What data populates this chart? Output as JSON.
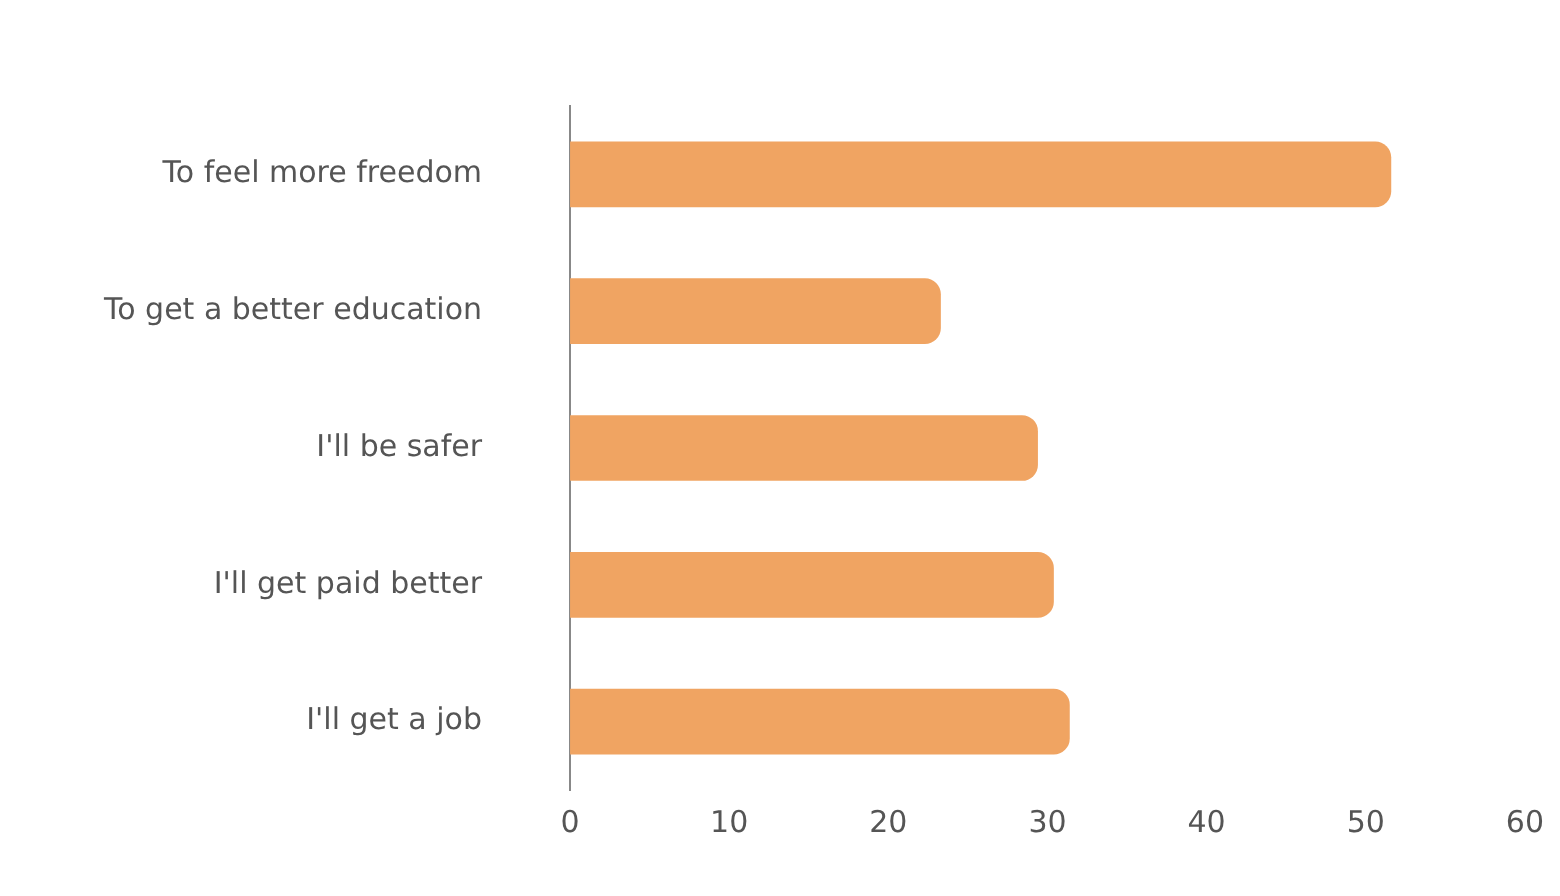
{
  "chart_data": {
    "type": "bar",
    "orientation": "horizontal",
    "categories": [
      "To feel more freedom",
      "To get a better education",
      "I'll be safer",
      "I'll get paid better",
      "I'll get a job"
    ],
    "values": [
      51.6,
      23.3,
      29.4,
      30.4,
      31.4
    ],
    "color": "#f0a462",
    "xlim": [
      0,
      60
    ],
    "xticks": [
      0,
      10,
      20,
      30,
      40,
      50,
      60
    ],
    "grid": false,
    "legend": false
  }
}
